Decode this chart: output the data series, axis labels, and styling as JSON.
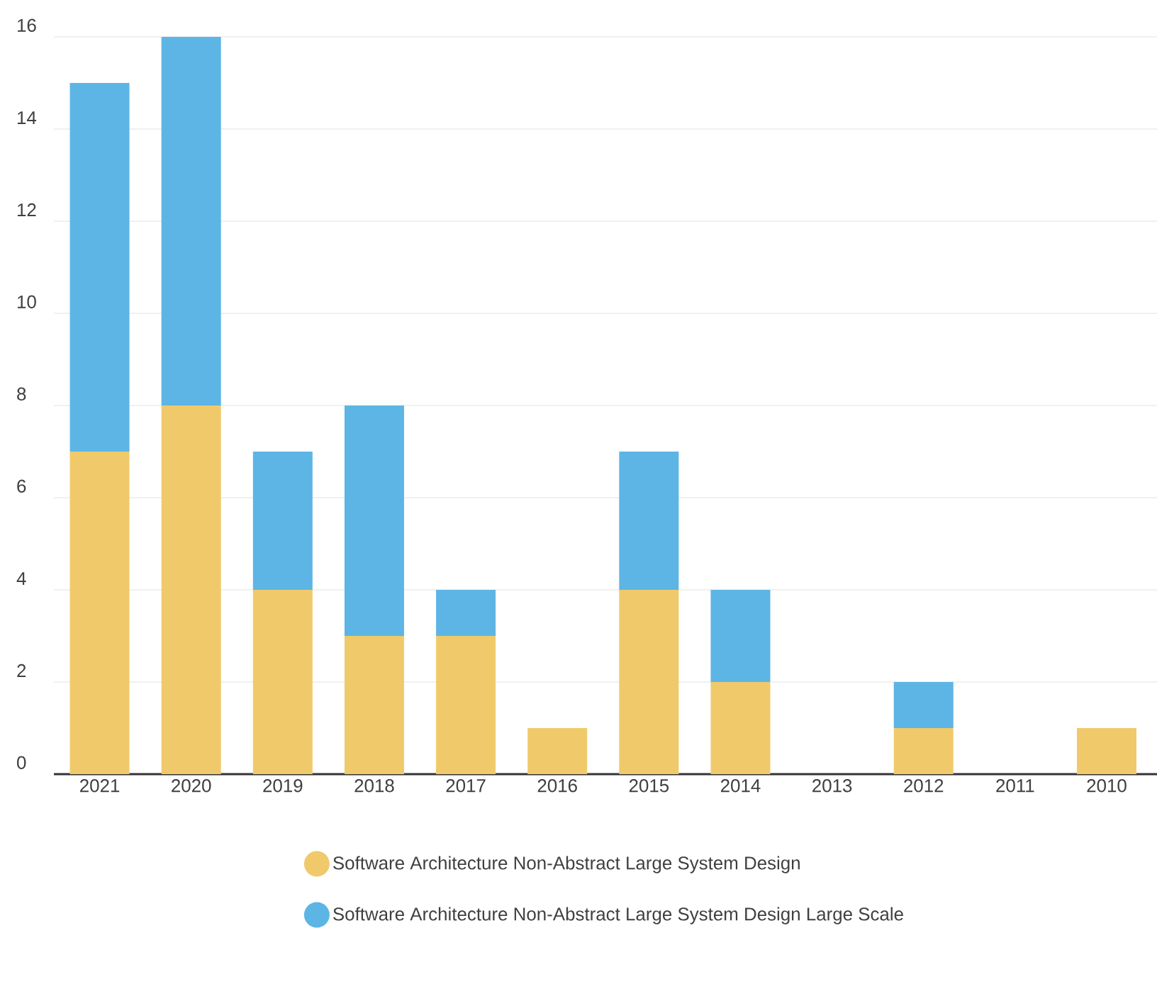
{
  "chart_data": {
    "type": "bar",
    "stacked": true,
    "categories": [
      "2021",
      "2020",
      "2019",
      "2018",
      "2017",
      "2016",
      "2015",
      "2014",
      "2013",
      "2012",
      "2011",
      "2010"
    ],
    "series": [
      {
        "name": "Software Architecture Non-Abstract Large System Design",
        "color": "#f0ca6a",
        "values": [
          7,
          8,
          4,
          3,
          3,
          1,
          4,
          2,
          0,
          1,
          0,
          1
        ]
      },
      {
        "name": "Software Architecture Non-Abstract Large System Design Large Scale",
        "color": "#5db5e5",
        "values": [
          8,
          8,
          3,
          5,
          1,
          0,
          3,
          2,
          0,
          1,
          0,
          0
        ]
      }
    ],
    "ylim": [
      0,
      16
    ],
    "yticks": [
      0,
      2,
      4,
      6,
      8,
      10,
      12,
      14,
      16
    ],
    "grid": "y",
    "legend": "bottom"
  }
}
